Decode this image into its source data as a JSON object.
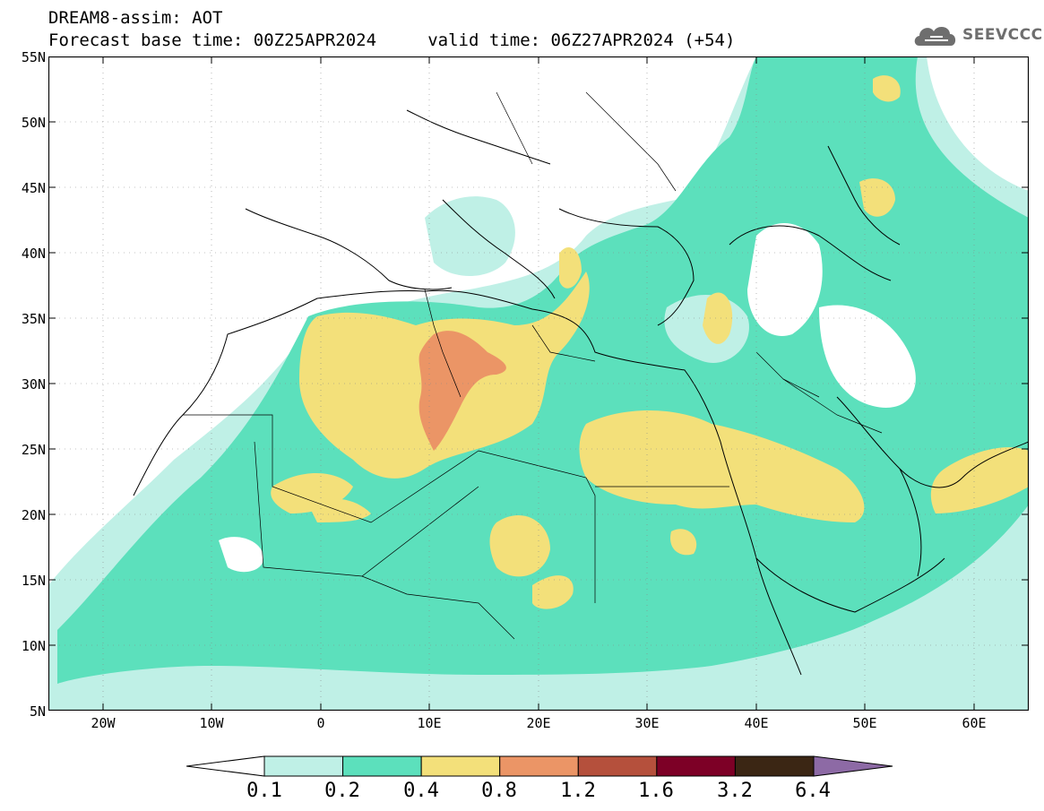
{
  "title": {
    "line1": "DREAM8-assim: AOT",
    "line2": "Forecast base time: 00Z25APR2024     valid time: 06Z27APR2024 (+54)"
  },
  "logo": {
    "text": "SEEVCCC",
    "icon": "cloud-icon"
  },
  "map": {
    "lat_labels": [
      "55N",
      "50N",
      "45N",
      "40N",
      "35N",
      "30N",
      "25N",
      "20N",
      "15N",
      "10N",
      "5N"
    ],
    "lon_labels": [
      "20W",
      "10W",
      "0",
      "10E",
      "20E",
      "30E",
      "40E",
      "50E",
      "60E"
    ]
  },
  "colorbar": {
    "levels": [
      "0.1",
      "0.2",
      "0.4",
      "0.8",
      "1.2",
      "1.6",
      "3.2",
      "6.4"
    ],
    "colors": [
      "#bff0e6",
      "#5ce0bc",
      "#f3e07a",
      "#eb9566",
      "#b5503c",
      "#7d0026",
      "#3b2614",
      "#8d6aa5"
    ],
    "under_color": "#ffffff"
  }
}
